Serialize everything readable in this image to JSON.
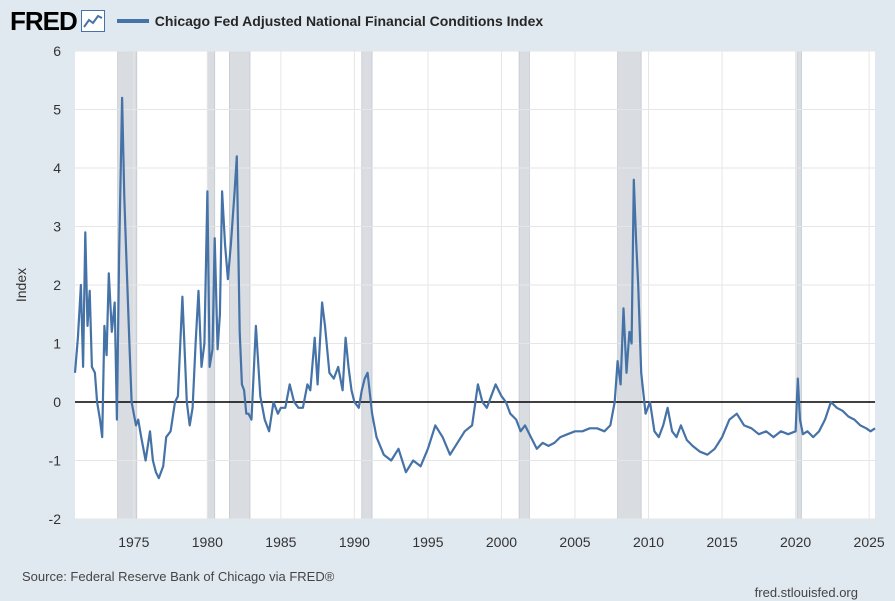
{
  "logo": {
    "text": "FRED",
    "icon": "line-chart-icon"
  },
  "footer": {
    "source": "Source: Federal Reserve Bank of Chicago via FRED®",
    "site": "fred.stlouisfed.org"
  },
  "colors": {
    "series": "#4572a7",
    "recession": "#d9dde2",
    "background": "#e1e9f0"
  },
  "chart_data": {
    "type": "line",
    "title": "",
    "xlabel": "",
    "ylabel": "Index",
    "xlim": [
      1971.0,
      2025.4
    ],
    "ylim": [
      -2,
      6
    ],
    "yticks": [
      "-2",
      "-1",
      "0",
      "1",
      "2",
      "3",
      "4",
      "5",
      "6"
    ],
    "xticks": [
      "1975",
      "1980",
      "1985",
      "1990",
      "1995",
      "2000",
      "2005",
      "2010",
      "2015",
      "2020",
      "2025"
    ],
    "grid": true,
    "legend_position": "top-left",
    "reference_line": 0,
    "recessions": [
      [
        1973.9,
        1975.2
      ],
      [
        1980.0,
        1980.5
      ],
      [
        1981.5,
        1982.9
      ],
      [
        1990.5,
        1991.2
      ],
      [
        2001.2,
        2001.9
      ],
      [
        2007.9,
        2009.5
      ],
      [
        2020.1,
        2020.4
      ]
    ],
    "series": [
      {
        "name": "Chicago Fed Adjusted National Financial Conditions Index",
        "x": [
          1971.0,
          1971.2,
          1971.4,
          1971.55,
          1971.7,
          1971.85,
          1972.0,
          1972.15,
          1972.35,
          1972.5,
          1972.7,
          1972.85,
          1973.0,
          1973.15,
          1973.3,
          1973.5,
          1973.7,
          1973.85,
          1974.0,
          1974.2,
          1974.35,
          1974.5,
          1974.7,
          1974.85,
          1975.0,
          1975.15,
          1975.3,
          1975.5,
          1975.8,
          1976.1,
          1976.3,
          1976.5,
          1976.7,
          1977.0,
          1977.2,
          1977.5,
          1977.8,
          1978.0,
          1978.3,
          1978.6,
          1978.8,
          1979.0,
          1979.2,
          1979.4,
          1979.6,
          1979.8,
          1980.0,
          1980.15,
          1980.35,
          1980.5,
          1980.7,
          1980.85,
          1981.0,
          1981.2,
          1981.4,
          1981.6,
          1981.85,
          1982.0,
          1982.2,
          1982.35,
          1982.5,
          1982.65,
          1982.8,
          1983.0,
          1983.3,
          1983.6,
          1983.9,
          1984.2,
          1984.5,
          1984.8,
          1985.0,
          1985.3,
          1985.6,
          1985.9,
          1986.2,
          1986.5,
          1986.8,
          1987.0,
          1987.3,
          1987.5,
          1987.8,
          1988.0,
          1988.3,
          1988.6,
          1988.9,
          1989.2,
          1989.4,
          1989.6,
          1989.8,
          1990.0,
          1990.3,
          1990.5,
          1990.7,
          1990.9,
          1991.2,
          1991.5,
          1992.0,
          1992.5,
          1993.0,
          1993.5,
          1994.0,
          1994.5,
          1995.0,
          1995.5,
          1996.0,
          1996.5,
          1997.0,
          1997.5,
          1998.0,
          1998.4,
          1998.7,
          1999.0,
          1999.3,
          1999.6,
          2000.0,
          2000.3,
          2000.6,
          2001.0,
          2001.3,
          2001.6,
          2002.0,
          2002.4,
          2002.8,
          2003.2,
          2003.6,
          2004.0,
          2004.5,
          2005.0,
          2005.5,
          2006.0,
          2006.5,
          2007.0,
          2007.4,
          2007.7,
          2007.9,
          2008.1,
          2008.3,
          2008.5,
          2008.7,
          2008.85,
          2009.0,
          2009.15,
          2009.3,
          2009.5,
          2009.8,
          2010.1,
          2010.4,
          2010.7,
          2011.0,
          2011.3,
          2011.6,
          2011.9,
          2012.2,
          2012.6,
          2013.0,
          2013.5,
          2014.0,
          2014.5,
          2015.0,
          2015.5,
          2016.0,
          2016.5,
          2017.0,
          2017.5,
          2018.0,
          2018.5,
          2019.0,
          2019.5,
          2020.0,
          2020.15,
          2020.3,
          2020.5,
          2020.8,
          2021.2,
          2021.6,
          2022.0,
          2022.4,
          2022.8,
          2023.2,
          2023.6,
          2024.0,
          2024.4,
          2024.8,
          2025.1,
          2025.4
        ],
        "values": [
          0.5,
          1.1,
          2.0,
          0.6,
          2.9,
          1.3,
          1.9,
          0.6,
          0.5,
          0.0,
          -0.3,
          -0.6,
          1.3,
          0.8,
          2.2,
          1.2,
          1.7,
          -0.3,
          2.5,
          5.2,
          3.5,
          2.4,
          1.0,
          0.0,
          -0.2,
          -0.4,
          -0.3,
          -0.6,
          -1.0,
          -0.5,
          -1.0,
          -1.2,
          -1.3,
          -1.1,
          -0.6,
          -0.5,
          0.0,
          0.1,
          1.8,
          0.0,
          -0.4,
          -0.1,
          1.0,
          1.9,
          0.6,
          1.0,
          3.6,
          0.6,
          0.9,
          2.8,
          0.9,
          1.5,
          3.6,
          2.7,
          2.1,
          2.7,
          3.6,
          4.2,
          1.2,
          0.3,
          0.2,
          -0.2,
          -0.2,
          -0.3,
          1.3,
          0.1,
          -0.3,
          -0.5,
          0.0,
          -0.2,
          -0.1,
          -0.1,
          0.3,
          0.0,
          -0.1,
          -0.1,
          0.3,
          0.2,
          1.1,
          0.3,
          1.7,
          1.3,
          0.5,
          0.4,
          0.6,
          0.2,
          1.1,
          0.6,
          0.2,
          0.0,
          -0.1,
          0.2,
          0.4,
          0.5,
          -0.2,
          -0.6,
          -0.9,
          -1.0,
          -0.8,
          -1.2,
          -1.0,
          -1.1,
          -0.8,
          -0.4,
          -0.6,
          -0.9,
          -0.7,
          -0.5,
          -0.4,
          0.3,
          0.0,
          -0.1,
          0.1,
          0.3,
          0.1,
          0.0,
          -0.2,
          -0.3,
          -0.5,
          -0.4,
          -0.6,
          -0.8,
          -0.7,
          -0.75,
          -0.7,
          -0.6,
          -0.55,
          -0.5,
          -0.5,
          -0.45,
          -0.45,
          -0.5,
          -0.4,
          0.0,
          0.7,
          0.3,
          1.6,
          0.5,
          1.2,
          1.0,
          3.8,
          2.8,
          2.0,
          0.5,
          -0.2,
          0.0,
          -0.5,
          -0.6,
          -0.4,
          -0.1,
          -0.5,
          -0.6,
          -0.4,
          -0.65,
          -0.75,
          -0.85,
          -0.9,
          -0.8,
          -0.6,
          -0.3,
          -0.2,
          -0.4,
          -0.45,
          -0.55,
          -0.5,
          -0.6,
          -0.5,
          -0.55,
          -0.5,
          0.4,
          -0.3,
          -0.55,
          -0.5,
          -0.6,
          -0.5,
          -0.3,
          0.0,
          -0.1,
          -0.15,
          -0.25,
          -0.3,
          -0.4,
          -0.45,
          -0.5,
          -0.45
        ]
      }
    ]
  }
}
